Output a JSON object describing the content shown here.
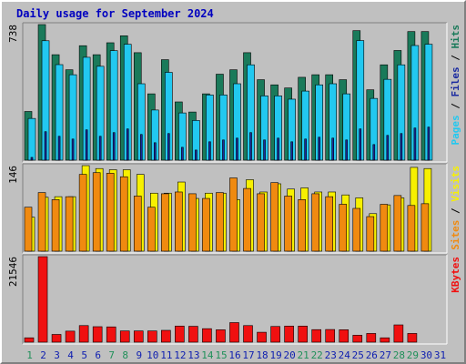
{
  "title": "Daily usage for September 2024",
  "colors": {
    "hits": "#1a7a5a",
    "files": "#22c8f0",
    "pages": "#1a2aa0",
    "visits": "#f7f000",
    "sites": "#f08a10",
    "kbytes": "#f01010",
    "weekend": "#20905a",
    "weekday": "#1020b0"
  },
  "legends": {
    "panel1": [
      "Pages",
      "Files",
      "Hits"
    ],
    "panel2": [
      "Sites",
      "Visits"
    ],
    "panel3": [
      "KBytes"
    ]
  },
  "chart_data": [
    {
      "type": "bar",
      "title": "Daily usage for September 2024",
      "categories": [
        "1",
        "2",
        "3",
        "4",
        "5",
        "6",
        "7",
        "8",
        "9",
        "10",
        "11",
        "12",
        "13",
        "14",
        "15",
        "16",
        "17",
        "18",
        "19",
        "20",
        "21",
        "22",
        "23",
        "24",
        "25",
        "26",
        "27",
        "28",
        "29",
        "30",
        "31"
      ],
      "weekend_days": [
        "1",
        "7",
        "8",
        "14",
        "15",
        "21",
        "22",
        "28",
        "29"
      ],
      "ymax_label": "738",
      "ylim": [
        0,
        738
      ],
      "series": [
        {
          "name": "Hits",
          "values": [
            265,
            738,
            574,
            492,
            623,
            574,
            639,
            677,
            585,
            361,
            547,
            317,
            262,
            361,
            468,
            492,
            585,
            438,
            410,
            393,
            451,
            465,
            465,
            438,
            705,
            383,
            519,
            597,
            700,
            700,
            0
          ]
        },
        {
          "name": "Files",
          "values": [
            227,
            650,
            520,
            465,
            560,
            511,
            596,
            631,
            416,
            273,
            478,
            257,
            216,
            355,
            355,
            416,
            519,
            350,
            350,
            332,
            376,
            410,
            416,
            361,
            651,
            336,
            440,
            519,
            624,
            631,
            0
          ]
        },
        {
          "name": "Pages",
          "values": [
            15,
            155,
            130,
            115,
            165,
            130,
            150,
            170,
            140,
            95,
            145,
            70,
            55,
            100,
            110,
            120,
            150,
            110,
            120,
            100,
            115,
            125,
            120,
            110,
            170,
            85,
            135,
            145,
            175,
            180,
            0
          ]
        }
      ]
    },
    {
      "type": "bar",
      "categories": [
        "1",
        "2",
        "3",
        "4",
        "5",
        "6",
        "7",
        "8",
        "9",
        "10",
        "11",
        "12",
        "13",
        "14",
        "15",
        "16",
        "17",
        "18",
        "19",
        "20",
        "21",
        "22",
        "23",
        "24",
        "25",
        "26",
        "27",
        "28",
        "29",
        "30",
        "31"
      ],
      "ymax_label": "146",
      "ylim": [
        0,
        146
      ],
      "series": [
        {
          "name": "Visits",
          "values": [
            58,
            92,
            93,
            93,
            146,
            141,
            139,
            139,
            131,
            99,
            99,
            118,
            90,
            99,
            99,
            88,
            122,
            101,
            115,
            106,
            108,
            101,
            101,
            96,
            91,
            64,
            79,
            91,
            143,
            141,
            0
          ]
        },
        {
          "name": "Sites",
          "values": [
            75,
            100,
            88,
            93,
            131,
            134,
            133,
            127,
            94,
            75,
            98,
            101,
            98,
            90,
            100,
            125,
            107,
            98,
            117,
            94,
            88,
            98,
            93,
            80,
            73,
            59,
            80,
            95,
            78,
            81,
            0
          ]
        }
      ]
    },
    {
      "type": "bar",
      "categories": [
        "1",
        "2",
        "3",
        "4",
        "5",
        "6",
        "7",
        "8",
        "9",
        "10",
        "11",
        "12",
        "13",
        "14",
        "15",
        "16",
        "17",
        "18",
        "19",
        "20",
        "21",
        "22",
        "23",
        "24",
        "25",
        "26",
        "27",
        "28",
        "29",
        "30",
        "31"
      ],
      "ymax_label": "21546",
      "ylim": [
        0,
        21546
      ],
      "series": [
        {
          "name": "KBytes",
          "values": [
            1100,
            21546,
            1950,
            2780,
            4180,
            3900,
            3850,
            2830,
            2830,
            2830,
            2980,
            4060,
            4000,
            3400,
            3120,
            4930,
            4180,
            2500,
            3960,
            4050,
            4050,
            3160,
            3190,
            3130,
            1750,
            2200,
            1100,
            4350,
            2200,
            0,
            0
          ]
        }
      ]
    }
  ]
}
